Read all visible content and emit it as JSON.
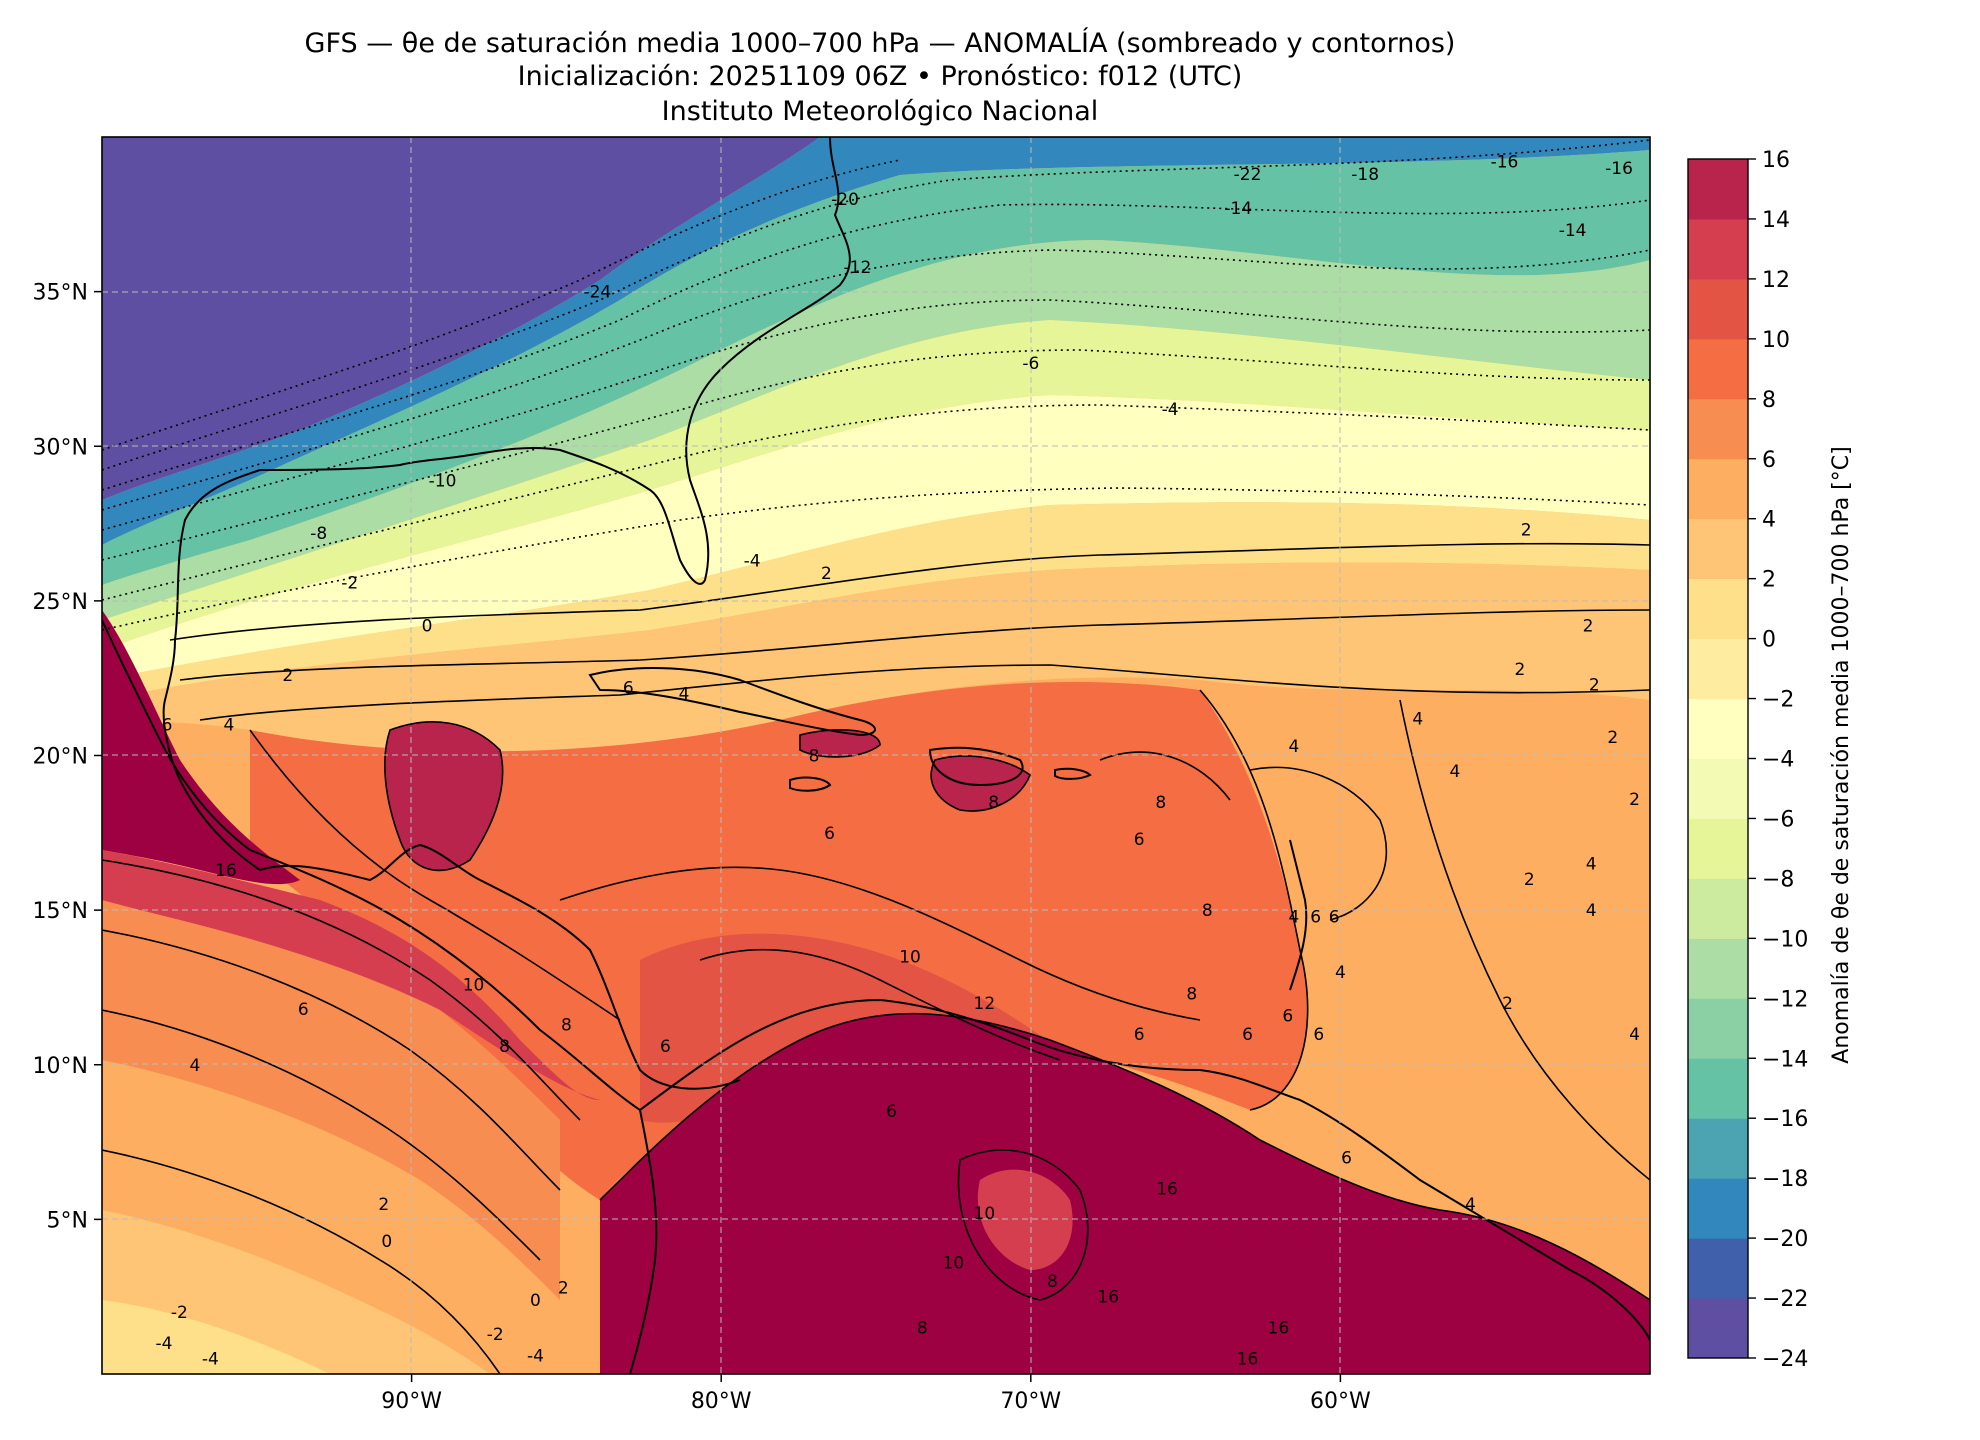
{
  "title": {
    "line1": "GFS — θe de saturación media 1000–700 hPa — ANOMALÍA (sombreado y contornos)",
    "line2": "Inicialización: 20251109 06Z   •   Pronóstico: f012 (UTC)",
    "line3": "Instituto Meteorológico Nacional"
  },
  "map": {
    "lon_range": [
      -100,
      -50
    ],
    "lat_range": [
      0,
      40
    ],
    "lat_ticks": [
      {
        "value": 35,
        "label": "35°N"
      },
      {
        "value": 30,
        "label": "30°N"
      },
      {
        "value": 25,
        "label": "25°N"
      },
      {
        "value": 20,
        "label": "20°N"
      },
      {
        "value": 15,
        "label": "15°N"
      },
      {
        "value": 10,
        "label": "10°N"
      },
      {
        "value": 5,
        "label": "5°N"
      }
    ],
    "lon_ticks": [
      {
        "value": -90,
        "label": "90°W"
      },
      {
        "value": -80,
        "label": "80°W"
      },
      {
        "value": -70,
        "label": "70°W"
      },
      {
        "value": -60,
        "label": "60°W"
      }
    ],
    "gridlines": true,
    "contour_labels": [
      {
        "lon": -63.0,
        "lat": 38.8,
        "text": "-22"
      },
      {
        "lon": -59.2,
        "lat": 38.8,
        "text": "-18"
      },
      {
        "lon": -54.7,
        "lat": 39.2,
        "text": "-16"
      },
      {
        "lon": -51.0,
        "lat": 39.0,
        "text": "-16"
      },
      {
        "lon": -63.3,
        "lat": 37.7,
        "text": "-14"
      },
      {
        "lon": -52.5,
        "lat": 37.0,
        "text": "-14"
      },
      {
        "lon": -75.6,
        "lat": 35.8,
        "text": "-12"
      },
      {
        "lon": -76.0,
        "lat": 38.0,
        "text": "-20"
      },
      {
        "lon": -84.0,
        "lat": 35.0,
        "text": "-24"
      },
      {
        "lon": -70.0,
        "lat": 32.7,
        "text": "-6"
      },
      {
        "lon": -65.5,
        "lat": 31.2,
        "text": "-4"
      },
      {
        "lon": -89.0,
        "lat": 28.9,
        "text": "-10"
      },
      {
        "lon": -93.0,
        "lat": 27.2,
        "text": "-8"
      },
      {
        "lon": -79.0,
        "lat": 26.3,
        "text": "-4"
      },
      {
        "lon": -92.0,
        "lat": 25.6,
        "text": "-2"
      },
      {
        "lon": -89.5,
        "lat": 24.2,
        "text": "0"
      },
      {
        "lon": -94.0,
        "lat": 22.6,
        "text": "2"
      },
      {
        "lon": -76.6,
        "lat": 25.9,
        "text": "2"
      },
      {
        "lon": -54.0,
        "lat": 27.3,
        "text": "2"
      },
      {
        "lon": -95.9,
        "lat": 21.0,
        "text": "4"
      },
      {
        "lon": -97.9,
        "lat": 21.0,
        "text": "6"
      },
      {
        "lon": -83.0,
        "lat": 22.2,
        "text": "6"
      },
      {
        "lon": -81.2,
        "lat": 22.0,
        "text": "4"
      },
      {
        "lon": -77.0,
        "lat": 20.0,
        "text": "8"
      },
      {
        "lon": -76.5,
        "lat": 17.5,
        "text": "6"
      },
      {
        "lon": -71.2,
        "lat": 18.5,
        "text": "8"
      },
      {
        "lon": -65.8,
        "lat": 18.5,
        "text": "8"
      },
      {
        "lon": -66.5,
        "lat": 17.3,
        "text": "6"
      },
      {
        "lon": -57.5,
        "lat": 21.2,
        "text": "4"
      },
      {
        "lon": -61.5,
        "lat": 20.3,
        "text": "4"
      },
      {
        "lon": -52.0,
        "lat": 24.2,
        "text": "2"
      },
      {
        "lon": -51.8,
        "lat": 22.3,
        "text": "2"
      },
      {
        "lon": -51.2,
        "lat": 20.6,
        "text": "2"
      },
      {
        "lon": -54.2,
        "lat": 22.8,
        "text": "2"
      },
      {
        "lon": -50.5,
        "lat": 18.6,
        "text": "2"
      },
      {
        "lon": -56.3,
        "lat": 19.5,
        "text": "4"
      },
      {
        "lon": -53.9,
        "lat": 16.0,
        "text": "2"
      },
      {
        "lon": -51.9,
        "lat": 16.5,
        "text": "4"
      },
      {
        "lon": -51.9,
        "lat": 15.0,
        "text": "4"
      },
      {
        "lon": -64.3,
        "lat": 15.0,
        "text": "8"
      },
      {
        "lon": -61.5,
        "lat": 14.8,
        "text": "4"
      },
      {
        "lon": -60.8,
        "lat": 14.8,
        "text": "6"
      },
      {
        "lon": -60.2,
        "lat": 14.8,
        "text": "6"
      },
      {
        "lon": -60.0,
        "lat": 13.0,
        "text": "4"
      },
      {
        "lon": -54.6,
        "lat": 12.0,
        "text": "2"
      },
      {
        "lon": -50.5,
        "lat": 11.0,
        "text": "4"
      },
      {
        "lon": -73.9,
        "lat": 13.5,
        "text": "10"
      },
      {
        "lon": -71.5,
        "lat": 12.0,
        "text": "12"
      },
      {
        "lon": -96.0,
        "lat": 16.3,
        "text": "16"
      },
      {
        "lon": -88.0,
        "lat": 12.6,
        "text": "10"
      },
      {
        "lon": -93.5,
        "lat": 11.8,
        "text": "6"
      },
      {
        "lon": -97.0,
        "lat": 10.0,
        "text": "4"
      },
      {
        "lon": -87.0,
        "lat": 10.6,
        "text": "8"
      },
      {
        "lon": -85.0,
        "lat": 11.3,
        "text": "8"
      },
      {
        "lon": -81.8,
        "lat": 10.6,
        "text": "6"
      },
      {
        "lon": -63.0,
        "lat": 11.0,
        "text": "6"
      },
      {
        "lon": -60.7,
        "lat": 11.0,
        "text": "6"
      },
      {
        "lon": -61.7,
        "lat": 11.6,
        "text": "6"
      },
      {
        "lon": -64.8,
        "lat": 12.3,
        "text": "8"
      },
      {
        "lon": -66.5,
        "lat": 11.0,
        "text": "6"
      },
      {
        "lon": -90.9,
        "lat": 5.5,
        "text": "2"
      },
      {
        "lon": -90.8,
        "lat": 4.3,
        "text": "0"
      },
      {
        "lon": -85.1,
        "lat": 2.8,
        "text": "2"
      },
      {
        "lon": -86.0,
        "lat": 2.4,
        "text": "0"
      },
      {
        "lon": -97.5,
        "lat": 2.0,
        "text": "-2"
      },
      {
        "lon": -98.0,
        "lat": 1.0,
        "text": "-4"
      },
      {
        "lon": -96.5,
        "lat": 0.5,
        "text": "-4"
      },
      {
        "lon": -87.3,
        "lat": 1.3,
        "text": "-2"
      },
      {
        "lon": -86.0,
        "lat": 0.6,
        "text": "-4"
      },
      {
        "lon": -74.5,
        "lat": 8.5,
        "text": "6"
      },
      {
        "lon": -71.5,
        "lat": 5.2,
        "text": "10"
      },
      {
        "lon": -72.5,
        "lat": 3.6,
        "text": "10"
      },
      {
        "lon": -73.5,
        "lat": 1.5,
        "text": "8"
      },
      {
        "lon": -69.3,
        "lat": 3.0,
        "text": "8"
      },
      {
        "lon": -67.5,
        "lat": 2.5,
        "text": "16"
      },
      {
        "lon": -65.6,
        "lat": 6.0,
        "text": "16"
      },
      {
        "lon": -62.0,
        "lat": 1.5,
        "text": "16"
      },
      {
        "lon": -63.0,
        "lat": 0.5,
        "text": "16"
      },
      {
        "lon": -59.8,
        "lat": 7.0,
        "text": "6"
      },
      {
        "lon": -55.8,
        "lat": 5.5,
        "text": "4"
      }
    ]
  },
  "colorbar": {
    "label": "Anomalía de θe de saturación media 1000–700 hPa [°C]",
    "levels": [
      -24,
      -22,
      -20,
      -18,
      -16,
      -14,
      -12,
      -10,
      -8,
      -6,
      -4,
      -2,
      0,
      2,
      4,
      6,
      8,
      10,
      12,
      14,
      16
    ],
    "tick_labels": [
      "−24",
      "−22",
      "−20",
      "−18",
      "−16",
      "−14",
      "−12",
      "−10",
      "−8",
      "−6",
      "−4",
      "−2",
      "0",
      "2",
      "4",
      "6",
      "8",
      "10",
      "12",
      "14",
      "16"
    ],
    "colors": [
      "#5e4fa2",
      "#4160ac",
      "#3288bd",
      "#4ca3b1",
      "#66c2a5",
      "#8ad0a4",
      "#abdda4",
      "#cdeb9e",
      "#e6f598",
      "#f3fab4",
      "#ffffbf",
      "#feeda0",
      "#fee08b",
      "#fdc575",
      "#fdae61",
      "#f88d52",
      "#f46d43",
      "#e45445",
      "#d53e4f",
      "#b9244c",
      "#9e0142"
    ]
  }
}
